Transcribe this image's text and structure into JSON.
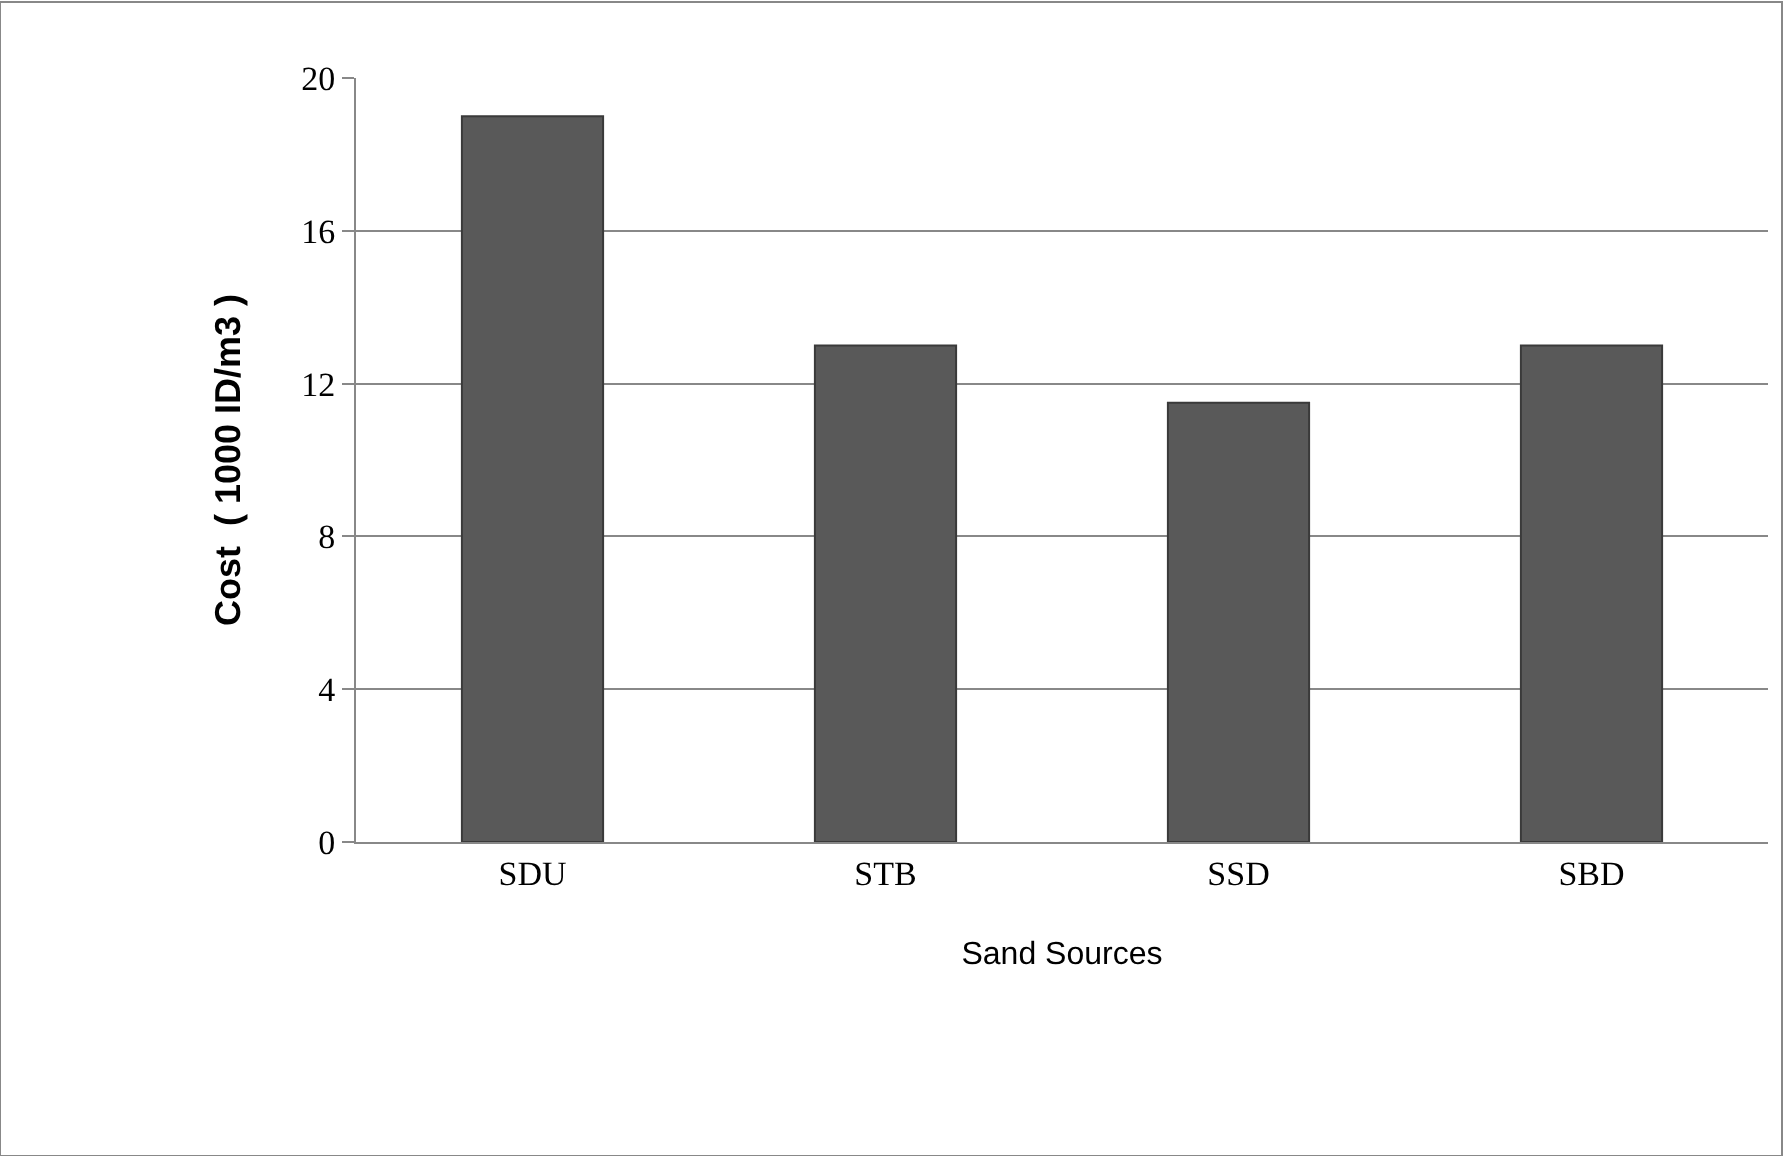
{
  "chart_data": {
    "type": "bar",
    "xlabel": "Sand Sources",
    "ylabel": "Cost  ( 1000 ID/m3 )",
    "categories": [
      "SDU",
      "STB",
      "SSD",
      "SBD"
    ],
    "values": [
      19,
      13,
      11.5,
      13
    ],
    "color": "#595959",
    "ylim": [
      0,
      20
    ],
    "yticks": [
      0,
      4,
      8,
      12,
      16,
      20
    ],
    "grid": "y",
    "legend": false
  }
}
